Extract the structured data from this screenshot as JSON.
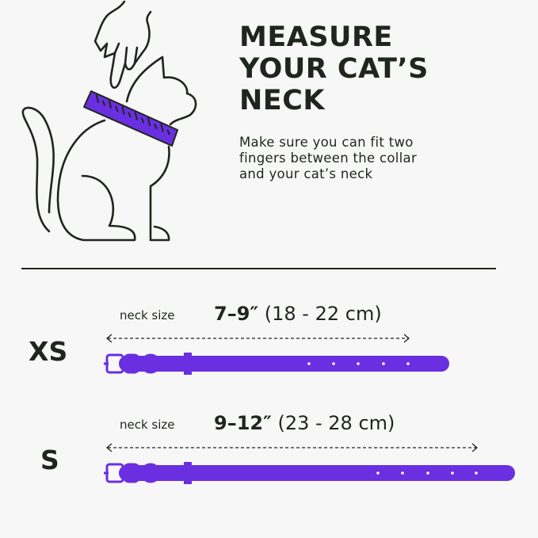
{
  "header": {
    "title": "MEASURE\nYOUR CAT’S\nNECK",
    "subtitle": "Make sure you can fit two\nfingers between the collar\nand your cat’s neck"
  },
  "illustration": {
    "icon": "cat-with-hand-and-measuring-tape-icon"
  },
  "colors": {
    "accent": "#6a2fe0",
    "text": "#1f261d",
    "background": "#f7f7f7"
  },
  "sizes": [
    {
      "label": "XS",
      "neck_label": "neck size",
      "inches": "7–9″",
      "cm": "(18 - 22 cm)"
    },
    {
      "label": "S",
      "neck_label": "neck size",
      "inches": "9–12″",
      "cm": "(23 - 28 cm)"
    }
  ]
}
